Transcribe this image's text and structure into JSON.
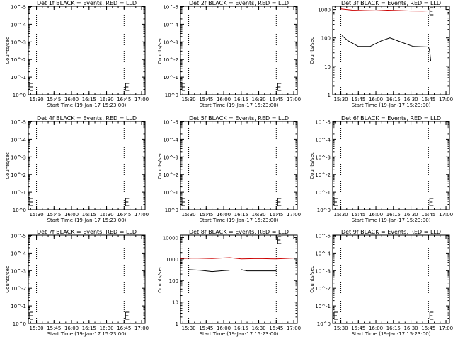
{
  "colors": {
    "events": "#000000",
    "lld": "#cc0000",
    "axes": "#000000",
    "background": "#ffffff"
  },
  "chart_data": [
    {
      "type": "line",
      "detector": "1f",
      "title": "Det 1f BLACK = Events, RED = LLD",
      "xlabel": "Start Time (19-Jan-17 15:23:00)",
      "ylabel": "Counts/sec",
      "x_ticks": [
        "15:30",
        "15:45",
        "16:00",
        "16:15",
        "16:30",
        "16:45",
        "17:00"
      ],
      "y_scale": "log",
      "y_ticks": [
        "10^0",
        "10^-1",
        "10^-2",
        "10^-3",
        "10^-4",
        "10^-5"
      ],
      "markers": [
        "15:30",
        "16:45"
      ],
      "e_marks": [
        "15:23",
        "16:45"
      ],
      "series": []
    },
    {
      "type": "line",
      "detector": "2f",
      "title": "Det 2f BLACK = Events, RED = LLD",
      "xlabel": "Start Time (19-Jan-17 15:23:00)",
      "ylabel": "Counts/sec",
      "x_ticks": [
        "15:30",
        "15:45",
        "16:00",
        "16:15",
        "16:30",
        "16:45",
        "17:00"
      ],
      "y_scale": "log",
      "y_ticks": [
        "10^0",
        "10^-1",
        "10^-2",
        "10^-3",
        "10^-4",
        "10^-5"
      ],
      "markers": [
        "15:30",
        "16:45"
      ],
      "e_marks": [
        "15:23",
        "16:45"
      ],
      "series": []
    },
    {
      "type": "line",
      "detector": "3f",
      "title": "Det 3f BLACK = Events, RED = LLD",
      "xlabel": "Start Time (19-Jan-17 15:23:00)",
      "ylabel": "Counts/sec",
      "x_ticks": [
        "15:30",
        "15:45",
        "16:00",
        "16:15",
        "16:30",
        "16:45",
        "17:00"
      ],
      "y_scale": "log",
      "y_ticks": [
        "1",
        "10",
        "100",
        "1000"
      ],
      "ylim": [
        1,
        1300
      ],
      "markers": [
        "15:30",
        "16:45"
      ],
      "e_marks": [
        "16:45"
      ],
      "series": [
        {
          "color": "red",
          "points": [
            [
              "15:30",
              1050
            ],
            [
              "15:40",
              950
            ],
            [
              "15:50",
              920
            ],
            [
              "16:00",
              900
            ],
            [
              "16:10",
              950
            ],
            [
              "16:20",
              920
            ],
            [
              "16:30",
              890
            ],
            [
              "16:40",
              880
            ],
            [
              "16:47",
              900
            ]
          ]
        },
        {
          "color": "black",
          "points": [
            [
              "15:31",
              120
            ],
            [
              "15:36",
              80
            ],
            [
              "15:45",
              50
            ],
            [
              "15:55",
              50
            ],
            [
              "16:05",
              80
            ],
            [
              "16:12",
              100
            ],
            [
              "16:22",
              70
            ],
            [
              "16:32",
              50
            ],
            [
              "16:45",
              48
            ],
            [
              "16:46",
              35
            ],
            [
              "16:47",
              15
            ]
          ]
        }
      ]
    },
    {
      "type": "line",
      "detector": "4f",
      "title": "Det 4f BLACK = Events, RED = LLD",
      "xlabel": "Start Time (19-Jan-17 15:23:00)",
      "ylabel": "Counts/sec",
      "x_ticks": [
        "15:30",
        "15:45",
        "16:00",
        "16:15",
        "16:30",
        "16:45",
        "17:00"
      ],
      "y_scale": "log",
      "y_ticks": [
        "10^0",
        "10^-1",
        "10^-2",
        "10^-3",
        "10^-4",
        "10^-5"
      ],
      "markers": [
        "15:30",
        "16:45"
      ],
      "e_marks": [
        "15:23",
        "16:45"
      ],
      "series": []
    },
    {
      "type": "line",
      "detector": "5f",
      "title": "Det 5f BLACK = Events, RED = LLD",
      "xlabel": "Start Time (19-Jan-17 15:23:00)",
      "ylabel": "Counts/sec",
      "x_ticks": [
        "15:30",
        "15:45",
        "16:00",
        "16:15",
        "16:30",
        "16:45",
        "17:00"
      ],
      "y_scale": "log",
      "y_ticks": [
        "10^0",
        "10^-1",
        "10^-2",
        "10^-3",
        "10^-4",
        "10^-5"
      ],
      "markers": [
        "15:30",
        "16:45"
      ],
      "e_marks": [
        "15:23",
        "16:45"
      ],
      "series": []
    },
    {
      "type": "line",
      "detector": "6f",
      "title": "Det 6f BLACK = Events, RED = LLD",
      "xlabel": "Start Time (19-Jan-17 15:23:00)",
      "ylabel": "Counts/sec",
      "x_ticks": [
        "15:30",
        "15:45",
        "16:00",
        "16:15",
        "16:30",
        "16:45",
        "17:00"
      ],
      "y_scale": "log",
      "y_ticks": [
        "10^0",
        "10^-1",
        "10^-2",
        "10^-3",
        "10^-4",
        "10^-5"
      ],
      "markers": [
        "15:30",
        "16:45"
      ],
      "e_marks": [
        "15:23",
        "16:45"
      ],
      "series": []
    },
    {
      "type": "line",
      "detector": "7f",
      "title": "Det 7f BLACK = Events, RED = LLD",
      "xlabel": "Start Time (19-Jan-17 15:23:00)",
      "ylabel": "Counts/sec",
      "x_ticks": [
        "15:30",
        "15:45",
        "16:00",
        "16:15",
        "16:30",
        "16:45",
        "17:00"
      ],
      "y_scale": "log",
      "y_ticks": [
        "10^0",
        "10^-1",
        "10^-2",
        "10^-3",
        "10^-4",
        "10^-5"
      ],
      "markers": [
        "15:30",
        "16:45"
      ],
      "e_marks": [
        "15:23",
        "16:45"
      ],
      "series": []
    },
    {
      "type": "line",
      "detector": "8f",
      "title": "Det 8f BLACK = Events, RED = LLD",
      "xlabel": "Start Time (19-Jan-17 15:23:00)",
      "ylabel": "Counts/sec",
      "x_ticks": [
        "15:30",
        "15:45",
        "16:00",
        "16:15",
        "16:30",
        "16:45",
        "17:00"
      ],
      "y_scale": "log",
      "y_ticks": [
        "1",
        "10",
        "100",
        "1000",
        "10000"
      ],
      "ylim": [
        1,
        13000
      ],
      "markers": [
        "15:30",
        "16:45"
      ],
      "e_marks": [
        "16:45"
      ],
      "series": [
        {
          "color": "red",
          "points": [
            [
              "15:23",
              1050
            ],
            [
              "15:35",
              1100
            ],
            [
              "15:50",
              1050
            ],
            [
              "16:05",
              1150
            ],
            [
              "16:15",
              1000
            ],
            [
              "16:30",
              1050
            ],
            [
              "16:45",
              1000
            ],
            [
              "17:00",
              1100
            ]
          ]
        },
        {
          "color": "black",
          "points": [
            [
              "15:30",
              320
            ],
            [
              "15:40",
              300
            ],
            [
              "15:50",
              260
            ],
            [
              "16:00",
              290
            ],
            [
              "16:05",
              300
            ]
          ]
        },
        {
          "color": "black",
          "points": [
            [
              "16:15",
              320
            ],
            [
              "16:20",
              280
            ],
            [
              "16:30",
              280
            ],
            [
              "16:40",
              280
            ],
            [
              "16:45",
              280
            ]
          ]
        }
      ]
    },
    {
      "type": "line",
      "detector": "9f",
      "title": "Det 9f BLACK = Events, RED = LLD",
      "xlabel": "Start Time (19-Jan-17 15:23:00)",
      "ylabel": "Counts/sec",
      "x_ticks": [
        "15:30",
        "15:45",
        "16:00",
        "16:15",
        "16:30",
        "16:45",
        "17:00"
      ],
      "y_scale": "log",
      "y_ticks": [
        "10^0",
        "10^-1",
        "10^-2",
        "10^-3",
        "10^-4",
        "10^-5"
      ],
      "markers": [
        "15:30",
        "16:45"
      ],
      "e_marks": [
        "15:23",
        "16:45"
      ],
      "series": []
    }
  ]
}
